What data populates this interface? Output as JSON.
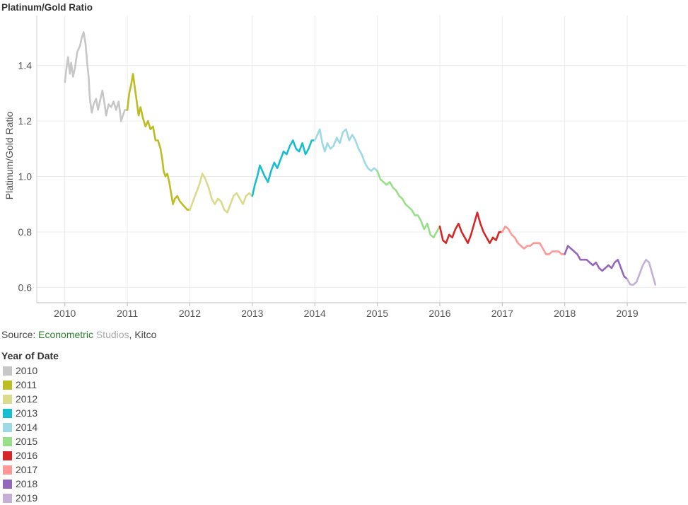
{
  "title": "Platinum/Gold Ratio",
  "source": {
    "prefix": "Source: ",
    "org_part1": "Econometric",
    "org_part2": " Studios",
    "suffix": ", Kitco"
  },
  "legend": {
    "title": "Year of Date",
    "items": [
      {
        "label": "2010",
        "color": "#c7c7c7"
      },
      {
        "label": "2011",
        "color": "#bcbd22"
      },
      {
        "label": "2012",
        "color": "#dbdb8d"
      },
      {
        "label": "2013",
        "color": "#17becf"
      },
      {
        "label": "2014",
        "color": "#9edae5"
      },
      {
        "label": "2015",
        "color": "#98df8a"
      },
      {
        "label": "2016",
        "color": "#d62728"
      },
      {
        "label": "2017",
        "color": "#ff9896"
      },
      {
        "label": "2018",
        "color": "#9467bd"
      },
      {
        "label": "2019",
        "color": "#c5b0d5"
      }
    ]
  },
  "chart_data": {
    "type": "line",
    "title": "Platinum/Gold Ratio",
    "xlabel": "",
    "ylabel": "Platinum/Gold Ratio",
    "xlim": [
      2009.55,
      2019.95
    ],
    "ylim": [
      0.545,
      1.58
    ],
    "x_ticks": [
      "2010",
      "2011",
      "2012",
      "2013",
      "2014",
      "2015",
      "2016",
      "2017",
      "2018",
      "2019"
    ],
    "y_ticks": [
      "0.6",
      "0.8",
      "1.0",
      "1.2",
      "1.4"
    ],
    "grid": true,
    "legend_position": "bottom-left",
    "series": [
      {
        "name": "2010",
        "color": "#c7c7c7",
        "points": [
          [
            2010.0,
            1.34
          ],
          [
            2010.02,
            1.38
          ],
          [
            2010.05,
            1.43
          ],
          [
            2010.08,
            1.37
          ],
          [
            2010.1,
            1.41
          ],
          [
            2010.13,
            1.36
          ],
          [
            2010.16,
            1.39
          ],
          [
            2010.2,
            1.45
          ],
          [
            2010.24,
            1.47
          ],
          [
            2010.27,
            1.5
          ],
          [
            2010.3,
            1.52
          ],
          [
            2010.33,
            1.48
          ],
          [
            2010.36,
            1.4
          ],
          [
            2010.38,
            1.36
          ],
          [
            2010.4,
            1.28
          ],
          [
            2010.43,
            1.23
          ],
          [
            2010.46,
            1.26
          ],
          [
            2010.5,
            1.28
          ],
          [
            2010.53,
            1.24
          ],
          [
            2010.56,
            1.27
          ],
          [
            2010.6,
            1.31
          ],
          [
            2010.63,
            1.27
          ],
          [
            2010.66,
            1.22
          ],
          [
            2010.7,
            1.26
          ],
          [
            2010.74,
            1.25
          ],
          [
            2010.78,
            1.27
          ],
          [
            2010.82,
            1.24
          ],
          [
            2010.86,
            1.27
          ],
          [
            2010.9,
            1.2
          ],
          [
            2010.93,
            1.22
          ],
          [
            2010.96,
            1.24
          ],
          [
            2011.0,
            1.24
          ]
        ]
      },
      {
        "name": "2011",
        "color": "#bcbd22",
        "points": [
          [
            2011.0,
            1.24
          ],
          [
            2011.03,
            1.3
          ],
          [
            2011.06,
            1.33
          ],
          [
            2011.09,
            1.37
          ],
          [
            2011.12,
            1.32
          ],
          [
            2011.15,
            1.27
          ],
          [
            2011.18,
            1.22
          ],
          [
            2011.21,
            1.25
          ],
          [
            2011.25,
            1.21
          ],
          [
            2011.29,
            1.18
          ],
          [
            2011.33,
            1.2
          ],
          [
            2011.37,
            1.17
          ],
          [
            2011.41,
            1.18
          ],
          [
            2011.45,
            1.13
          ],
          [
            2011.49,
            1.13
          ],
          [
            2011.53,
            1.1
          ],
          [
            2011.56,
            1.06
          ],
          [
            2011.58,
            1.02
          ],
          [
            2011.61,
            1.0
          ],
          [
            2011.64,
            1.01
          ],
          [
            2011.67,
            0.98
          ],
          [
            2011.7,
            0.94
          ],
          [
            2011.73,
            0.9
          ],
          [
            2011.76,
            0.92
          ],
          [
            2011.8,
            0.93
          ],
          [
            2011.84,
            0.91
          ],
          [
            2011.88,
            0.9
          ],
          [
            2011.92,
            0.89
          ],
          [
            2011.96,
            0.88
          ],
          [
            2012.0,
            0.88
          ]
        ]
      },
      {
        "name": "2012",
        "color": "#dbdb8d",
        "points": [
          [
            2012.0,
            0.88
          ],
          [
            2012.05,
            0.91
          ],
          [
            2012.1,
            0.94
          ],
          [
            2012.15,
            0.97
          ],
          [
            2012.2,
            1.01
          ],
          [
            2012.25,
            0.99
          ],
          [
            2012.3,
            0.96
          ],
          [
            2012.35,
            0.92
          ],
          [
            2012.4,
            0.9
          ],
          [
            2012.45,
            0.92
          ],
          [
            2012.5,
            0.91
          ],
          [
            2012.55,
            0.88
          ],
          [
            2012.6,
            0.87
          ],
          [
            2012.65,
            0.9
          ],
          [
            2012.7,
            0.93
          ],
          [
            2012.75,
            0.94
          ],
          [
            2012.8,
            0.92
          ],
          [
            2012.85,
            0.9
          ],
          [
            2012.9,
            0.93
          ],
          [
            2012.95,
            0.94
          ],
          [
            2013.0,
            0.93
          ]
        ]
      },
      {
        "name": "2013",
        "color": "#17becf",
        "points": [
          [
            2013.0,
            0.93
          ],
          [
            2013.04,
            0.97
          ],
          [
            2013.08,
            1.0
          ],
          [
            2013.12,
            1.04
          ],
          [
            2013.16,
            1.02
          ],
          [
            2013.2,
            1.0
          ],
          [
            2013.25,
            0.98
          ],
          [
            2013.3,
            1.02
          ],
          [
            2013.35,
            1.05
          ],
          [
            2013.4,
            1.03
          ],
          [
            2013.45,
            1.06
          ],
          [
            2013.5,
            1.09
          ],
          [
            2013.55,
            1.08
          ],
          [
            2013.6,
            1.11
          ],
          [
            2013.65,
            1.13
          ],
          [
            2013.7,
            1.1
          ],
          [
            2013.75,
            1.09
          ],
          [
            2013.8,
            1.12
          ],
          [
            2013.85,
            1.08
          ],
          [
            2013.9,
            1.1
          ],
          [
            2013.95,
            1.13
          ],
          [
            2014.0,
            1.13
          ]
        ]
      },
      {
        "name": "2014",
        "color": "#9edae5",
        "points": [
          [
            2014.0,
            1.13
          ],
          [
            2014.04,
            1.15
          ],
          [
            2014.08,
            1.17
          ],
          [
            2014.12,
            1.12
          ],
          [
            2014.16,
            1.09
          ],
          [
            2014.2,
            1.12
          ],
          [
            2014.25,
            1.1
          ],
          [
            2014.3,
            1.11
          ],
          [
            2014.35,
            1.14
          ],
          [
            2014.4,
            1.12
          ],
          [
            2014.45,
            1.16
          ],
          [
            2014.5,
            1.17
          ],
          [
            2014.55,
            1.13
          ],
          [
            2014.6,
            1.15
          ],
          [
            2014.65,
            1.13
          ],
          [
            2014.7,
            1.1
          ],
          [
            2014.75,
            1.08
          ],
          [
            2014.8,
            1.05
          ],
          [
            2014.85,
            1.03
          ],
          [
            2014.9,
            1.02
          ],
          [
            2014.95,
            1.03
          ],
          [
            2015.0,
            1.02
          ]
        ]
      },
      {
        "name": "2015",
        "color": "#98df8a",
        "points": [
          [
            2015.0,
            1.02
          ],
          [
            2015.05,
            0.99
          ],
          [
            2015.1,
            0.98
          ],
          [
            2015.15,
            0.97
          ],
          [
            2015.2,
            0.98
          ],
          [
            2015.25,
            0.96
          ],
          [
            2015.3,
            0.95
          ],
          [
            2015.35,
            0.93
          ],
          [
            2015.4,
            0.92
          ],
          [
            2015.45,
            0.9
          ],
          [
            2015.5,
            0.89
          ],
          [
            2015.55,
            0.88
          ],
          [
            2015.6,
            0.86
          ],
          [
            2015.65,
            0.86
          ],
          [
            2015.7,
            0.84
          ],
          [
            2015.75,
            0.81
          ],
          [
            2015.8,
            0.83
          ],
          [
            2015.85,
            0.79
          ],
          [
            2015.9,
            0.78
          ],
          [
            2015.95,
            0.8
          ],
          [
            2016.0,
            0.82
          ]
        ]
      },
      {
        "name": "2016",
        "color": "#d62728",
        "points": [
          [
            2016.0,
            0.82
          ],
          [
            2016.05,
            0.77
          ],
          [
            2016.1,
            0.76
          ],
          [
            2016.15,
            0.79
          ],
          [
            2016.2,
            0.78
          ],
          [
            2016.25,
            0.81
          ],
          [
            2016.3,
            0.83
          ],
          [
            2016.35,
            0.8
          ],
          [
            2016.4,
            0.78
          ],
          [
            2016.45,
            0.76
          ],
          [
            2016.5,
            0.79
          ],
          [
            2016.55,
            0.83
          ],
          [
            2016.6,
            0.87
          ],
          [
            2016.65,
            0.83
          ],
          [
            2016.7,
            0.8
          ],
          [
            2016.75,
            0.78
          ],
          [
            2016.8,
            0.76
          ],
          [
            2016.85,
            0.78
          ],
          [
            2016.9,
            0.77
          ],
          [
            2016.95,
            0.8
          ],
          [
            2017.0,
            0.8
          ]
        ]
      },
      {
        "name": "2017",
        "color": "#ff9896",
        "points": [
          [
            2017.0,
            0.8
          ],
          [
            2017.05,
            0.82
          ],
          [
            2017.1,
            0.81
          ],
          [
            2017.15,
            0.79
          ],
          [
            2017.2,
            0.78
          ],
          [
            2017.25,
            0.76
          ],
          [
            2017.3,
            0.75
          ],
          [
            2017.35,
            0.74
          ],
          [
            2017.4,
            0.75
          ],
          [
            2017.45,
            0.75
          ],
          [
            2017.5,
            0.76
          ],
          [
            2017.55,
            0.76
          ],
          [
            2017.6,
            0.76
          ],
          [
            2017.65,
            0.74
          ],
          [
            2017.7,
            0.72
          ],
          [
            2017.75,
            0.72
          ],
          [
            2017.8,
            0.73
          ],
          [
            2017.85,
            0.73
          ],
          [
            2017.9,
            0.73
          ],
          [
            2017.95,
            0.72
          ],
          [
            2018.0,
            0.72
          ]
        ]
      },
      {
        "name": "2018",
        "color": "#9467bd",
        "points": [
          [
            2018.0,
            0.72
          ],
          [
            2018.05,
            0.75
          ],
          [
            2018.1,
            0.74
          ],
          [
            2018.15,
            0.73
          ],
          [
            2018.2,
            0.72
          ],
          [
            2018.25,
            0.7
          ],
          [
            2018.3,
            0.7
          ],
          [
            2018.35,
            0.7
          ],
          [
            2018.4,
            0.69
          ],
          [
            2018.45,
            0.68
          ],
          [
            2018.5,
            0.69
          ],
          [
            2018.55,
            0.67
          ],
          [
            2018.6,
            0.66
          ],
          [
            2018.65,
            0.67
          ],
          [
            2018.7,
            0.68
          ],
          [
            2018.75,
            0.67
          ],
          [
            2018.8,
            0.69
          ],
          [
            2018.85,
            0.7
          ],
          [
            2018.9,
            0.67
          ],
          [
            2018.95,
            0.64
          ],
          [
            2019.0,
            0.63
          ]
        ]
      },
      {
        "name": "2019",
        "color": "#c5b0d5",
        "points": [
          [
            2019.0,
            0.63
          ],
          [
            2019.05,
            0.61
          ],
          [
            2019.1,
            0.61
          ],
          [
            2019.15,
            0.62
          ],
          [
            2019.2,
            0.65
          ],
          [
            2019.25,
            0.68
          ],
          [
            2019.3,
            0.7
          ],
          [
            2019.35,
            0.69
          ],
          [
            2019.4,
            0.65
          ],
          [
            2019.45,
            0.61
          ]
        ]
      }
    ]
  }
}
